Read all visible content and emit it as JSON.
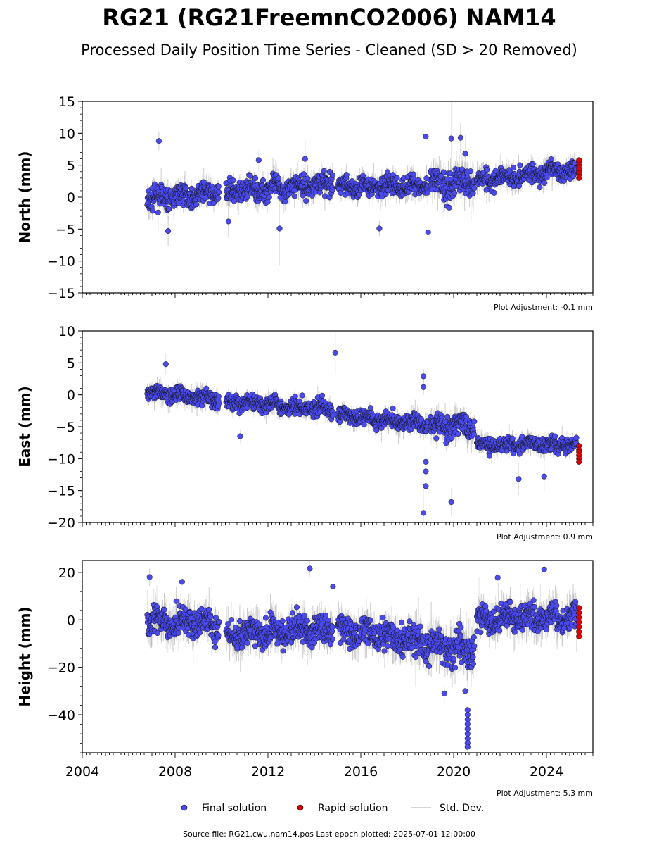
{
  "title": "RG21 (RG21FreemnCO2006) NAM14",
  "subtitle": "Processed Daily Position Time Series - Cleaned (SD > 20 Removed)",
  "footer": "Source file: RG21.cwu.nam14.pos  Last epoch plotted: 2025-07-01 12:00:00",
  "colors": {
    "final": "#4a4af0",
    "rapid": "#e00000",
    "stddev": "#c8c8c8",
    "line": "#555555"
  },
  "legend": [
    {
      "key": "final",
      "label": "Final solution"
    },
    {
      "key": "rapid",
      "label": "Rapid solution"
    },
    {
      "key": "stddev",
      "label": "Std. Dev."
    }
  ],
  "chart_data": [
    {
      "type": "scatter",
      "ylabel": "North (mm)",
      "ylim": [
        -15,
        15
      ],
      "yticks": [
        -15,
        -10,
        -5,
        0,
        5,
        10,
        15
      ],
      "xlim": [
        2004,
        2026
      ],
      "xticks": [],
      "adjustment": "Plot Adjustment: -0.1 mm",
      "segments": [
        {
          "x": [
            2006.8,
            2009.9
          ],
          "y": [
            -0.4,
            0.8
          ],
          "spread": 1.4
        },
        {
          "x": [
            2010.2,
            2014.8
          ],
          "y": [
            0.8,
            2.2
          ],
          "spread": 1.5
        },
        {
          "x": [
            2015.0,
            2018.9
          ],
          "y": [
            1.6,
            1.8
          ],
          "spread": 1.4
        },
        {
          "x": [
            2019.0,
            2020.9
          ],
          "y": [
            1.8,
            2.6
          ],
          "spread": 2.0
        },
        {
          "x": [
            2021.0,
            2025.3
          ],
          "y": [
            2.6,
            4.4
          ],
          "spread": 1.3
        }
      ],
      "outliers": [
        [
          2007.3,
          8.8
        ],
        [
          2007.7,
          -5.3
        ],
        [
          2010.3,
          -3.8
        ],
        [
          2011.6,
          5.8
        ],
        [
          2012.5,
          -4.9
        ],
        [
          2013.6,
          6.0
        ],
        [
          2016.8,
          -4.9
        ],
        [
          2018.8,
          9.5
        ],
        [
          2018.9,
          -5.5
        ],
        [
          2019.9,
          9.2
        ],
        [
          2020.3,
          9.3
        ],
        [
          2020.5,
          6.8
        ]
      ],
      "rapid": {
        "x": 2025.4,
        "y": [
          3.0,
          3.5,
          4.0,
          4.5,
          5.0,
          5.5,
          5.8
        ]
      }
    },
    {
      "type": "scatter",
      "ylabel": "East (mm)",
      "ylim": [
        -20,
        10
      ],
      "yticks": [
        -20,
        -15,
        -10,
        -5,
        0,
        5,
        10
      ],
      "xlim": [
        2004,
        2026
      ],
      "xticks": [],
      "adjustment": "Plot Adjustment: 0.9 mm",
      "segments": [
        {
          "x": [
            2006.8,
            2009.9
          ],
          "y": [
            0.5,
            -0.8
          ],
          "spread": 1.1
        },
        {
          "x": [
            2010.2,
            2014.8
          ],
          "y": [
            -1.0,
            -2.2
          ],
          "spread": 1.1
        },
        {
          "x": [
            2015.0,
            2018.9
          ],
          "y": [
            -3.2,
            -4.6
          ],
          "spread": 1.1
        },
        {
          "x": [
            2019.0,
            2020.9
          ],
          "y": [
            -5.0,
            -4.8
          ],
          "spread": 1.6
        },
        {
          "x": [
            2021.0,
            2025.3
          ],
          "y": [
            -7.8,
            -7.8
          ],
          "spread": 1.0
        }
      ],
      "outliers": [
        [
          2007.6,
          4.8
        ],
        [
          2014.9,
          6.6
        ],
        [
          2010.8,
          -6.5
        ],
        [
          2018.7,
          2.9
        ],
        [
          2018.7,
          1.2
        ],
        [
          2018.7,
          -18.5
        ],
        [
          2018.8,
          -14.3
        ],
        [
          2018.8,
          -12.0
        ],
        [
          2018.8,
          -10.5
        ],
        [
          2019.9,
          -16.8
        ],
        [
          2022.8,
          -13.2
        ],
        [
          2023.9,
          -12.8
        ]
      ],
      "rapid": {
        "x": 2025.4,
        "y": [
          -8.0,
          -8.6,
          -9.0,
          -9.5,
          -10.0,
          -10.5
        ]
      }
    },
    {
      "type": "scatter",
      "ylabel": "Height (mm)",
      "ylim": [
        -56,
        25
      ],
      "yticks": [
        -40,
        -20,
        0,
        20
      ],
      "xlim": [
        2004,
        2026
      ],
      "xticks": [
        2004,
        2008,
        2012,
        2016,
        2020,
        2024
      ],
      "adjustment": "Plot Adjustment: 5.3 mm",
      "segments": [
        {
          "x": [
            2006.8,
            2009.9
          ],
          "y": [
            0,
            -2
          ],
          "spread": 5.5
        },
        {
          "x": [
            2010.2,
            2014.8
          ],
          "y": [
            -6,
            -4
          ],
          "spread": 5.5
        },
        {
          "x": [
            2015.0,
            2018.3
          ],
          "y": [
            -4,
            -8
          ],
          "spread": 5.5
        },
        {
          "x": [
            2018.3,
            2020.9
          ],
          "y": [
            -10,
            -12
          ],
          "spread": 6.5
        },
        {
          "x": [
            2021.0,
            2025.3
          ],
          "y": [
            0,
            2
          ],
          "spread": 5.5
        }
      ],
      "outliers": [
        [
          2006.9,
          18
        ],
        [
          2008.3,
          16
        ],
        [
          2013.8,
          21.6
        ],
        [
          2014.8,
          14
        ],
        [
          2021.9,
          17.8
        ],
        [
          2023.9,
          21.2
        ],
        [
          2019.6,
          -31
        ],
        [
          2020.5,
          -30
        ],
        [
          2020.6,
          -38
        ],
        [
          2020.6,
          -40
        ],
        [
          2020.6,
          -42
        ],
        [
          2020.6,
          -44
        ],
        [
          2020.6,
          -46
        ],
        [
          2020.6,
          -48
        ],
        [
          2020.6,
          -50
        ],
        [
          2020.6,
          -52
        ],
        [
          2020.6,
          -53.5
        ]
      ],
      "rapid": {
        "x": 2025.4,
        "y": [
          -7,
          -5,
          -3,
          -1,
          1,
          3,
          5
        ]
      }
    }
  ]
}
